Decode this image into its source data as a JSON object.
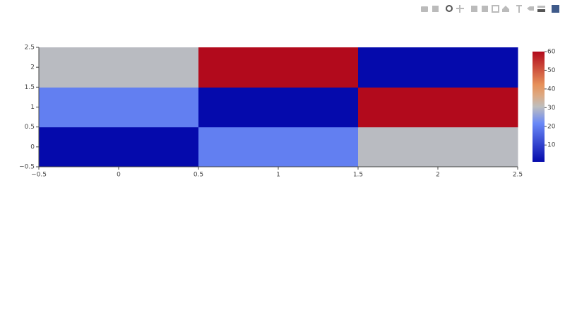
{
  "chart_data": {
    "type": "heatmap",
    "x": [
      0,
      1,
      2
    ],
    "y": [
      0,
      1,
      2
    ],
    "z": [
      [
        1,
        20,
        30
      ],
      [
        20,
        1,
        60
      ],
      [
        30,
        60,
        1
      ]
    ],
    "zlim": [
      1,
      60
    ],
    "colorscale": [
      [
        0,
        "#050aac"
      ],
      [
        0.35,
        "#6a89f7"
      ],
      [
        0.5,
        "#bebebe"
      ],
      [
        0.6,
        "#dcaa84"
      ],
      [
        0.7,
        "#e6915a"
      ],
      [
        1,
        "#b20a1c"
      ]
    ],
    "xlim": [
      -0.5,
      2.5
    ],
    "xticks": [
      {
        "value": -0.5,
        "label": "−0.5"
      },
      0,
      0.5,
      1,
      1.5,
      2,
      2.5
    ],
    "ylim": [
      -0.5,
      2.5
    ],
    "yticks": [
      {
        "value": -0.5,
        "label": "−0.5"
      },
      0,
      0.5,
      1,
      1.5,
      2,
      2.5
    ],
    "colorbar_ticks": [
      10,
      20,
      30,
      40,
      50,
      60
    ]
  }
}
